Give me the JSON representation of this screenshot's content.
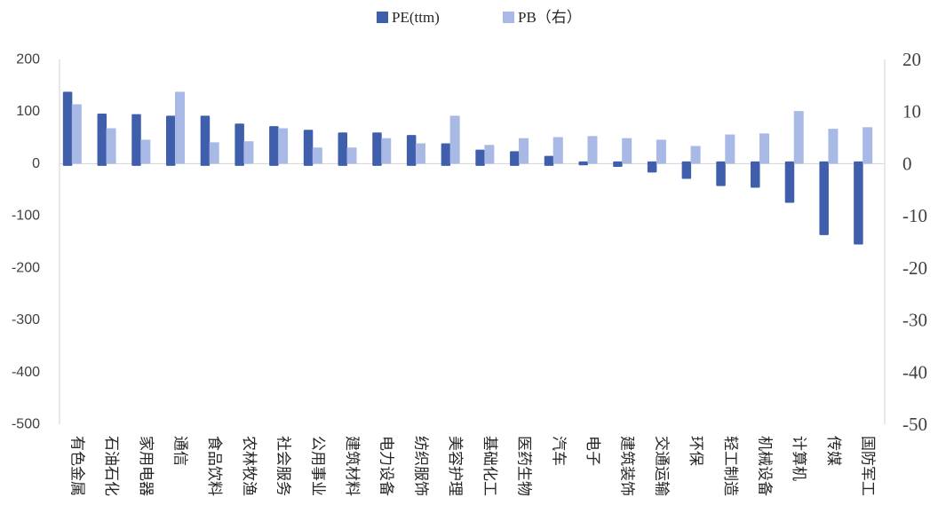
{
  "colors": {
    "pe": "#3F5FAD",
    "pb": "#A8B9E5",
    "axis": "#D9D9D9",
    "text": "#404040"
  },
  "chart_data": {
    "type": "bar",
    "categories": [
      "有色金属",
      "石油石化",
      "家用电器",
      "通信",
      "食品饮料",
      "农林牧渔",
      "社会服务",
      "公用事业",
      "建筑材料",
      "电力设备",
      "纺织服饰",
      "美容护理",
      "基础化工",
      "医药生物",
      "汽车",
      "电子",
      "建筑装饰",
      "交通运输",
      "环保",
      "轻工制造",
      "机械设备",
      "计算机",
      "传媒",
      "国防军工"
    ],
    "series": [
      {
        "name": "PE(ttm)",
        "axis": "left",
        "values": [
          138,
          96,
          95,
          92,
          92,
          77,
          72,
          65,
          60,
          60,
          55,
          39,
          27,
          24,
          15,
          -3,
          -6,
          -17,
          -29,
          -43,
          -46,
          -75,
          -137,
          -155
        ]
      },
      {
        "name": "PB（右）",
        "axis": "right",
        "values": [
          11.4,
          6.8,
          4.6,
          13.8,
          4.1,
          4.3,
          6.8,
          3.1,
          3.1,
          4.9,
          3.9,
          9.2,
          3.6,
          4.9,
          5.1,
          5.3,
          4.9,
          4.6,
          3.4,
          5.6,
          5.8,
          10.1,
          6.7,
          7.0
        ]
      }
    ],
    "y_left": {
      "range": [
        -500,
        200
      ],
      "tick_labels": [
        "200",
        "100",
        "0",
        "-100",
        "-200",
        "-300",
        "-400",
        "-500"
      ]
    },
    "y_right": {
      "range": [
        -50,
        20
      ],
      "tick_labels": [
        "20",
        "10",
        "0",
        "-10",
        "-20",
        "-30",
        "-40",
        "-50"
      ]
    },
    "grid": false,
    "legend_position": "top"
  }
}
